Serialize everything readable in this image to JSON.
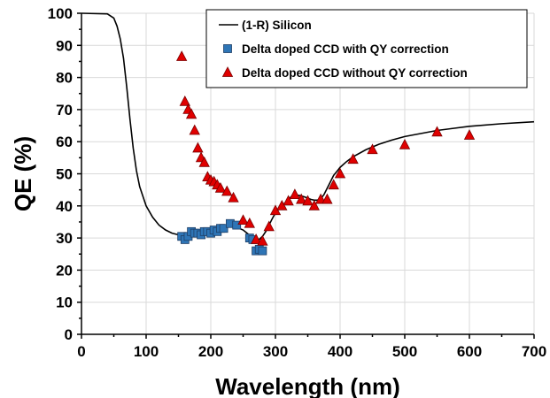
{
  "chart_data": {
    "type": "scatter",
    "title": "",
    "xlabel": "Wavelength (nm)",
    "ylabel": "QE (%)",
    "xlim": [
      0,
      700
    ],
    "ylim": [
      0,
      100
    ],
    "xticks": [
      "0",
      "100",
      "200",
      "300",
      "400",
      "500",
      "600",
      "700"
    ],
    "yticks": [
      "0",
      "10",
      "20",
      "30",
      "40",
      "50",
      "60",
      "70",
      "80",
      "90",
      "100"
    ],
    "grid": true,
    "legend_position": "top-right",
    "series": [
      {
        "name": "(1-R) Silicon",
        "kind": "line",
        "color": "#000000",
        "x": [
          0,
          40,
          50,
          55,
          60,
          65,
          70,
          75,
          80,
          85,
          90,
          100,
          110,
          120,
          130,
          140,
          150,
          160,
          170,
          180,
          190,
          200,
          210,
          220,
          230,
          240,
          250,
          258,
          265,
          270,
          275,
          280,
          285,
          290,
          295,
          300,
          305,
          310,
          315,
          320,
          325,
          330,
          335,
          340,
          345,
          350,
          355,
          360,
          365,
          370,
          375,
          380,
          385,
          390,
          400,
          410,
          420,
          440,
          460,
          480,
          500,
          550,
          600,
          650,
          700
        ],
        "y": [
          100,
          99.8,
          98.5,
          96,
          92,
          86,
          77,
          67,
          58,
          51,
          46,
          40,
          36.5,
          34,
          32.5,
          31.5,
          31,
          31,
          31.3,
          31.7,
          32.2,
          32.6,
          33,
          33.3,
          33.5,
          33.3,
          32.5,
          31.2,
          29.8,
          29.3,
          29.6,
          30.5,
          32,
          34,
          36,
          37.8,
          39,
          40,
          41,
          42,
          43,
          43.4,
          43.3,
          43.1,
          42.8,
          42.4,
          42,
          41.8,
          41.8,
          42.2,
          43.5,
          45.5,
          47.5,
          49.5,
          52,
          53.8,
          55.3,
          57.5,
          59.2,
          60.5,
          61.6,
          63.5,
          64.8,
          65.6,
          66.2
        ]
      },
      {
        "name": "Delta doped CCD with QY correction",
        "kind": "marker",
        "marker": "square",
        "color": "#2e75b6",
        "x": [
          155,
          160,
          165,
          170,
          175,
          180,
          185,
          190,
          195,
          200,
          205,
          210,
          215,
          220,
          230,
          240,
          260,
          265,
          270,
          275,
          280
        ],
        "y": [
          30.5,
          29.5,
          30.5,
          32,
          31.5,
          31.5,
          31,
          32,
          32,
          31.5,
          32.5,
          32,
          33,
          33,
          34.5,
          34,
          30,
          29.5,
          26,
          26.5,
          26
        ]
      },
      {
        "name": "Delta doped CCD without QY correction",
        "kind": "marker",
        "marker": "triangle",
        "color": "#e00000",
        "x": [
          155,
          160,
          165,
          170,
          175,
          180,
          185,
          190,
          195,
          200,
          205,
          210,
          215,
          225,
          235,
          250,
          260,
          270,
          280,
          290,
          300,
          310,
          320,
          330,
          340,
          350,
          360,
          370,
          380,
          390,
          400,
          420,
          450,
          500,
          550,
          600
        ],
        "y": [
          86.5,
          72.5,
          70,
          68.5,
          63.5,
          58,
          55,
          53.5,
          49,
          48,
          47.5,
          46.5,
          45.5,
          44.5,
          42.5,
          35.5,
          34.5,
          29.5,
          29,
          33.5,
          38.5,
          40,
          41.5,
          43.5,
          42,
          41.5,
          40,
          42,
          42,
          46.5,
          50,
          54.5,
          57.5,
          59,
          63,
          62
        ]
      }
    ]
  }
}
